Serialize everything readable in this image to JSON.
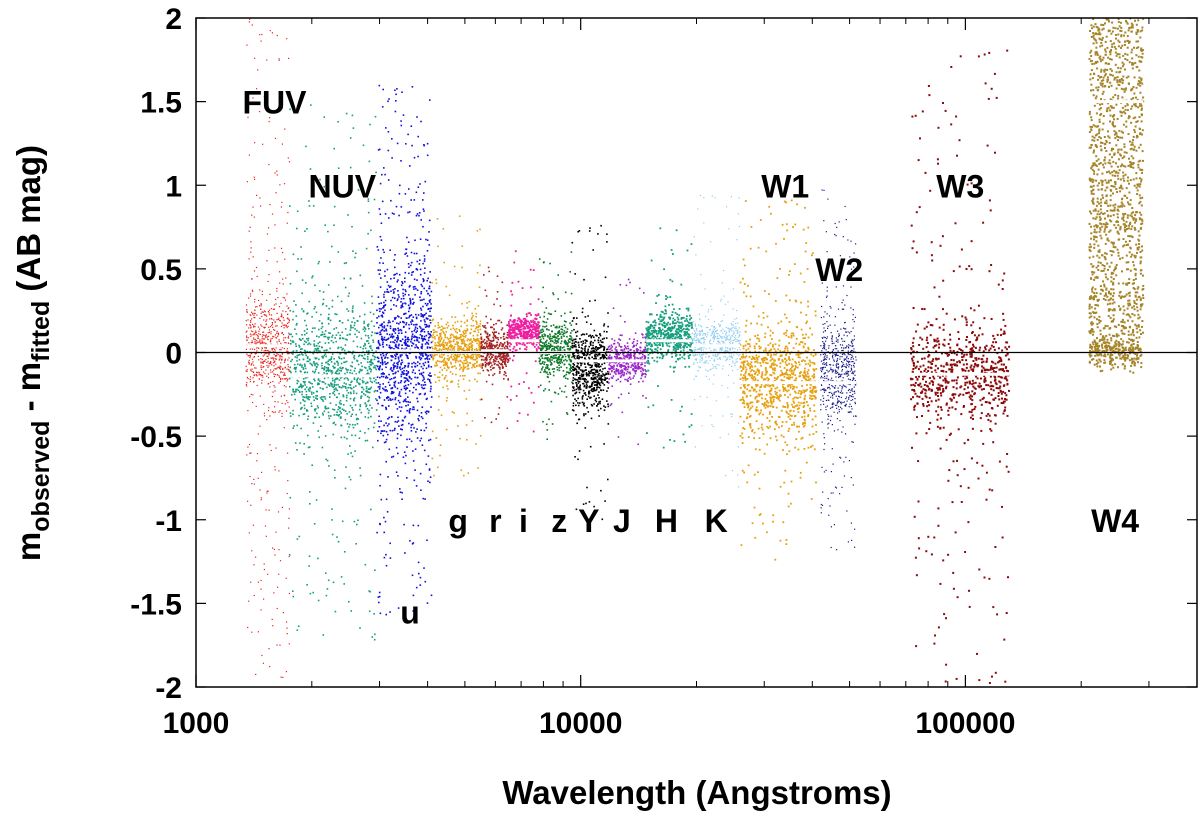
{
  "chart_data": {
    "type": "scatter",
    "title": "",
    "xlabel": "Wavelength (Angstroms)",
    "ylabel_main": "m",
    "ylabel_sub1": "observed",
    "ylabel_mid": " - m",
    "ylabel_sub2": "fitted",
    "ylabel_tail": " (AB mag)",
    "xscale": "log",
    "xlim": [
      1000,
      400000
    ],
    "ylim": [
      -2,
      2
    ],
    "x_ticks": [
      1000,
      10000,
      100000
    ],
    "x_tick_labels": [
      "1000",
      "10000",
      "100000"
    ],
    "y_ticks": [
      2,
      1.5,
      1,
      0.5,
      0,
      -0.5,
      -1,
      -1.5,
      -2
    ],
    "y_tick_labels": [
      "2",
      "1.5",
      "1",
      "0.5",
      "0",
      "-0.5",
      "-1",
      "-1.5",
      "-2"
    ],
    "zero_line": 0,
    "bands": [
      {
        "name": "FUV",
        "color": "#e8221b",
        "x_range": [
          1350,
          1750
        ],
        "median": 0.04,
        "core_sigma": 0.14,
        "core_center": 0.04,
        "tail_spread": 2.0,
        "n_core": 520,
        "n_tail": 260,
        "dot": 1.2,
        "label_x": 1600,
        "label_y": 1.5
      },
      {
        "name": "NUV",
        "color": "#179e7e",
        "x_range": [
          1750,
          2950
        ],
        "median": -0.14,
        "core_sigma": 0.17,
        "core_center": -0.12,
        "tail_spread": 1.6,
        "n_core": 780,
        "n_tail": 240,
        "dot": 1.6,
        "label_x": 2400,
        "label_y": 1.0
      },
      {
        "name": "u",
        "color": "#1111dd",
        "x_range": [
          2950,
          4100
        ],
        "median": 0.01,
        "core_sigma": 0.28,
        "core_center": 0.02,
        "tail_spread": 1.6,
        "n_core": 820,
        "n_tail": 260,
        "dot": 1.6,
        "label_x": 3600,
        "label_y": -1.55
      },
      {
        "name": "g",
        "color": "#e6a010",
        "x_range": [
          4100,
          5500
        ],
        "median": 0.0,
        "core_sigma": 0.09,
        "core_center": 0.02,
        "tail_spread": 0.8,
        "n_core": 520,
        "n_tail": 70,
        "dot": 1.6,
        "label_x": 4800,
        "label_y": -1.0
      },
      {
        "name": "r",
        "color": "#a52222",
        "x_range": [
          5500,
          6500
        ],
        "median": 0.01,
        "core_sigma": 0.07,
        "core_center": 0.02,
        "tail_spread": 0.5,
        "n_core": 320,
        "n_tail": 40,
        "dot": 1.6,
        "label_x": 6000,
        "label_y": -1.0
      },
      {
        "name": "i",
        "color": "#ee1fa0",
        "x_range": [
          6500,
          7800
        ],
        "median": 0.07,
        "core_sigma": 0.05,
        "core_center": 0.12,
        "tail_spread": 0.6,
        "n_core": 360,
        "n_tail": 40,
        "dot": 1.8,
        "label_x": 7100,
        "label_y": -1.0
      },
      {
        "name": "z",
        "color": "#0f7a2a",
        "x_range": [
          7800,
          9500
        ],
        "median": 0.0,
        "core_sigma": 0.09,
        "core_center": 0.02,
        "tail_spread": 0.6,
        "n_core": 380,
        "n_tail": 50,
        "dot": 1.6,
        "label_x": 8800,
        "label_y": -1.0
      },
      {
        "name": "Y",
        "color": "#000000",
        "x_range": [
          9500,
          11800
        ],
        "median": -0.05,
        "core_sigma": 0.12,
        "core_center": -0.1,
        "tail_spread": 0.9,
        "n_core": 520,
        "n_tail": 70,
        "dot": 1.6,
        "label_x": 10500,
        "label_y": -1.0
      },
      {
        "name": "J",
        "color": "#9a25c8",
        "x_range": [
          11800,
          14800
        ],
        "median": -0.05,
        "core_sigma": 0.06,
        "core_center": -0.05,
        "tail_spread": 0.5,
        "n_core": 380,
        "n_tail": 30,
        "dot": 1.6,
        "label_x": 12800,
        "label_y": -1.0
      },
      {
        "name": "H",
        "color": "#179e7e",
        "x_range": [
          14800,
          19500
        ],
        "median": 0.07,
        "core_sigma": 0.07,
        "core_center": 0.1,
        "tail_spread": 0.7,
        "n_core": 480,
        "n_tail": 50,
        "dot": 1.8,
        "label_x": 16700,
        "label_y": -1.0
      },
      {
        "name": "K",
        "color": "#8fcdf0",
        "x_range": [
          19500,
          26000
        ],
        "median": 0.04,
        "core_sigma": 0.08,
        "core_center": 0.05,
        "tail_spread": 0.9,
        "n_core": 450,
        "n_tail": 80,
        "dot": 1.2,
        "label_x": 22500,
        "label_y": -1.0
      },
      {
        "name": "W1",
        "color": "#e6a010",
        "x_range": [
          26000,
          41000
        ],
        "median": -0.18,
        "core_sigma": 0.16,
        "core_center": -0.16,
        "tail_spread": 1.1,
        "n_core": 760,
        "n_tail": 160,
        "dot": 1.8,
        "label_x": 34000,
        "label_y": 1.0
      },
      {
        "name": "W2",
        "color": "#1a1a8a",
        "x_range": [
          42000,
          52000
        ],
        "median": -0.18,
        "core_sigma": 0.16,
        "core_center": -0.12,
        "tail_spread": 1.1,
        "n_core": 460,
        "n_tail": 120,
        "dot": 1.2,
        "label_x": 47000,
        "label_y": 0.5
      },
      {
        "name": "W3",
        "color": "#8c0a0a",
        "x_range": [
          72000,
          130000
        ],
        "median": -0.13,
        "core_sigma": 0.14,
        "core_center": -0.13,
        "tail_spread": 2.0,
        "n_core": 560,
        "n_tail": 220,
        "dot": 2.0,
        "label_x": 97000,
        "label_y": 1.0
      },
      {
        "name": "W4",
        "color": "#a6852a",
        "x_range": [
          210000,
          290000
        ],
        "median": 1.5,
        "core_sigma": 0.05,
        "core_center": 0.0,
        "tail_spread": 2.0,
        "n_core": 240,
        "n_tail": 1300,
        "dot": 2.0,
        "label_x": 245000,
        "label_y": -1.0
      }
    ]
  }
}
